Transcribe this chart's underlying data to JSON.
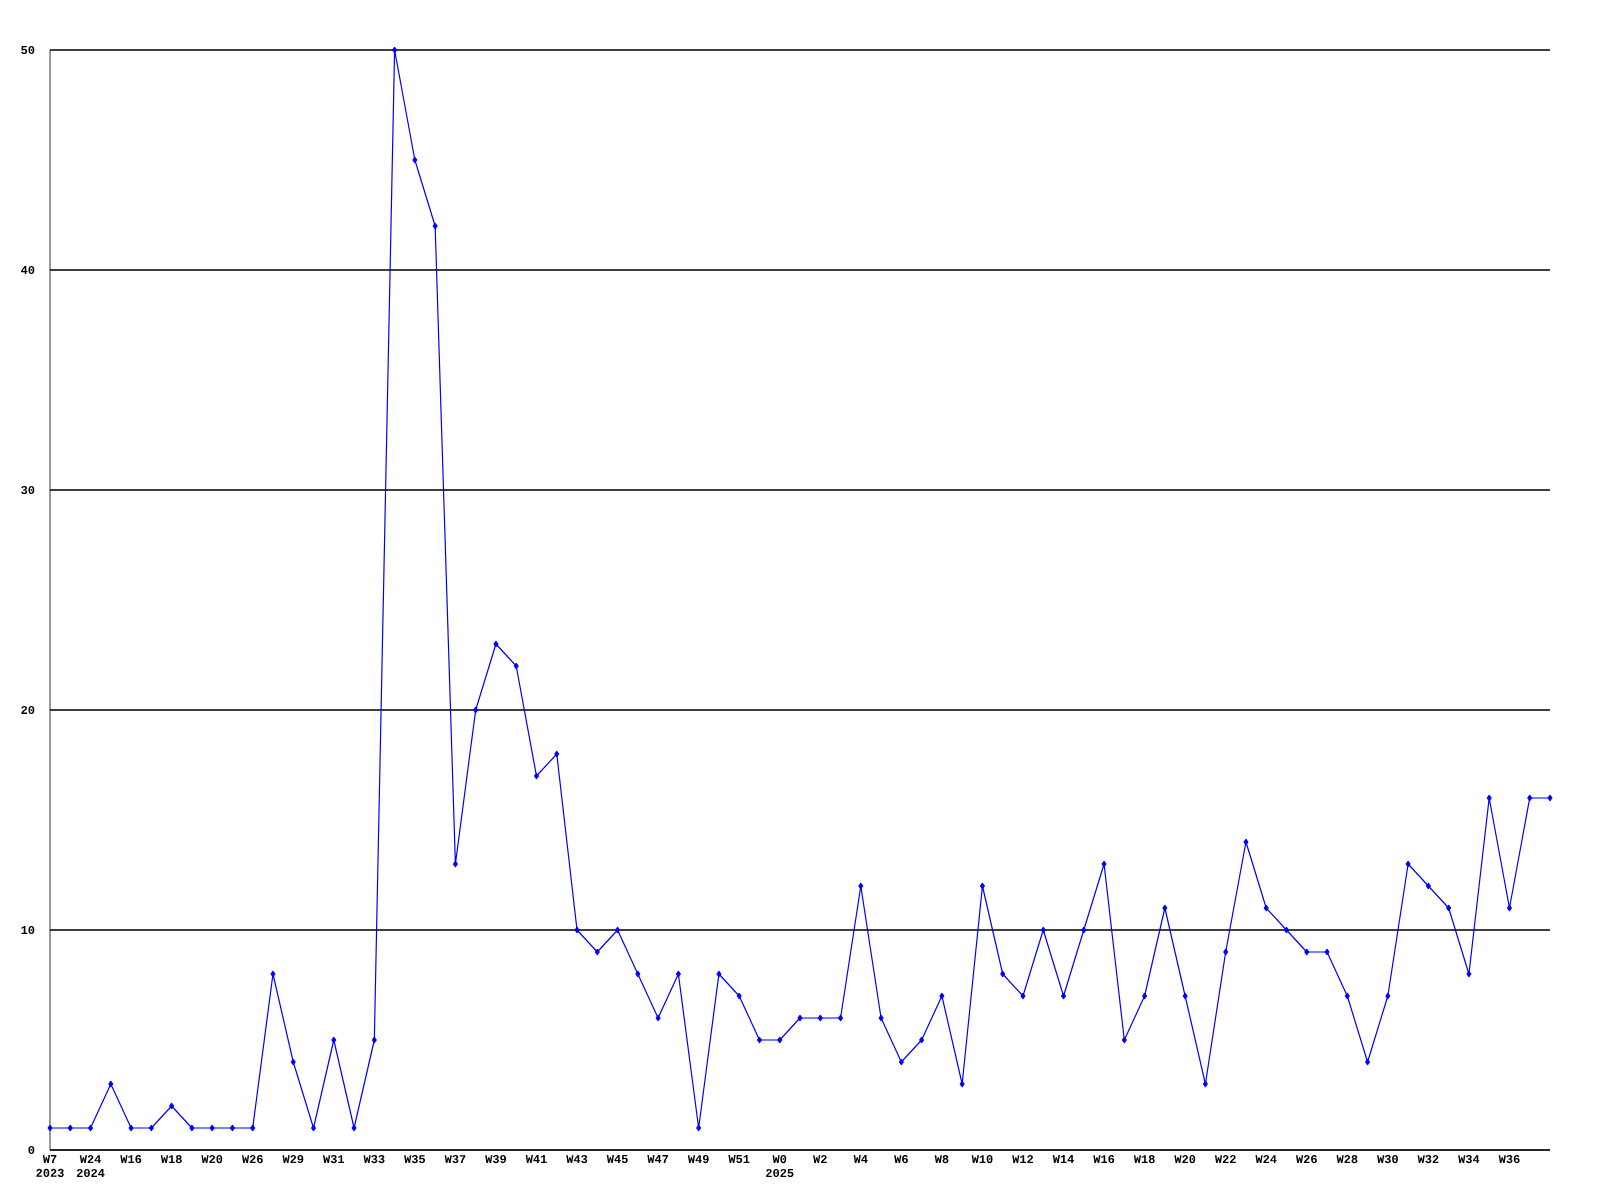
{
  "chart_data": {
    "type": "line",
    "categories": [
      "W7 2023",
      null,
      "W24 2024",
      null,
      "W16",
      null,
      "W18",
      null,
      "W20",
      null,
      "W26",
      null,
      "W29",
      null,
      "W31",
      null,
      "W33",
      null,
      "W35",
      null,
      "W37",
      null,
      "W39",
      null,
      "W41",
      null,
      "W43",
      null,
      "W45",
      null,
      "W47",
      null,
      "W49",
      null,
      "W51",
      null,
      "W0 2025",
      null,
      "W2",
      null,
      "W4",
      null,
      "W6",
      null,
      "W8",
      null,
      "W10",
      null,
      "W12",
      null,
      "W14",
      null,
      "W16",
      null,
      "W18",
      null,
      "W20",
      null,
      "W22",
      null,
      "W24",
      null,
      "W26",
      null,
      "W28",
      null,
      "W30",
      null,
      "W32",
      null,
      "W34",
      null,
      "W36",
      null,
      null
    ],
    "series": [
      {
        "color": "#0000ff",
        "values": [
          1,
          1,
          1,
          3,
          1,
          1,
          2,
          1,
          1,
          1,
          1,
          8,
          4,
          1,
          5,
          1,
          5,
          50,
          45,
          42,
          13,
          20,
          23,
          22,
          17,
          18,
          10,
          9,
          10,
          8,
          6,
          8,
          1,
          8,
          7,
          5,
          5,
          6,
          6,
          6,
          12,
          6,
          4,
          5,
          7,
          3,
          12,
          8,
          7,
          10,
          7,
          10,
          13,
          5,
          7,
          11,
          7,
          3,
          9,
          14,
          11,
          10,
          9,
          9,
          7,
          4,
          7,
          13,
          12,
          11,
          8,
          16,
          11,
          16,
          16
        ]
      }
    ],
    "ylim": [
      0,
      50
    ],
    "yticks": [
      0,
      10,
      20,
      30,
      40,
      50
    ],
    "grid": "y",
    "marker": "diamond",
    "line_style": "solid"
  }
}
